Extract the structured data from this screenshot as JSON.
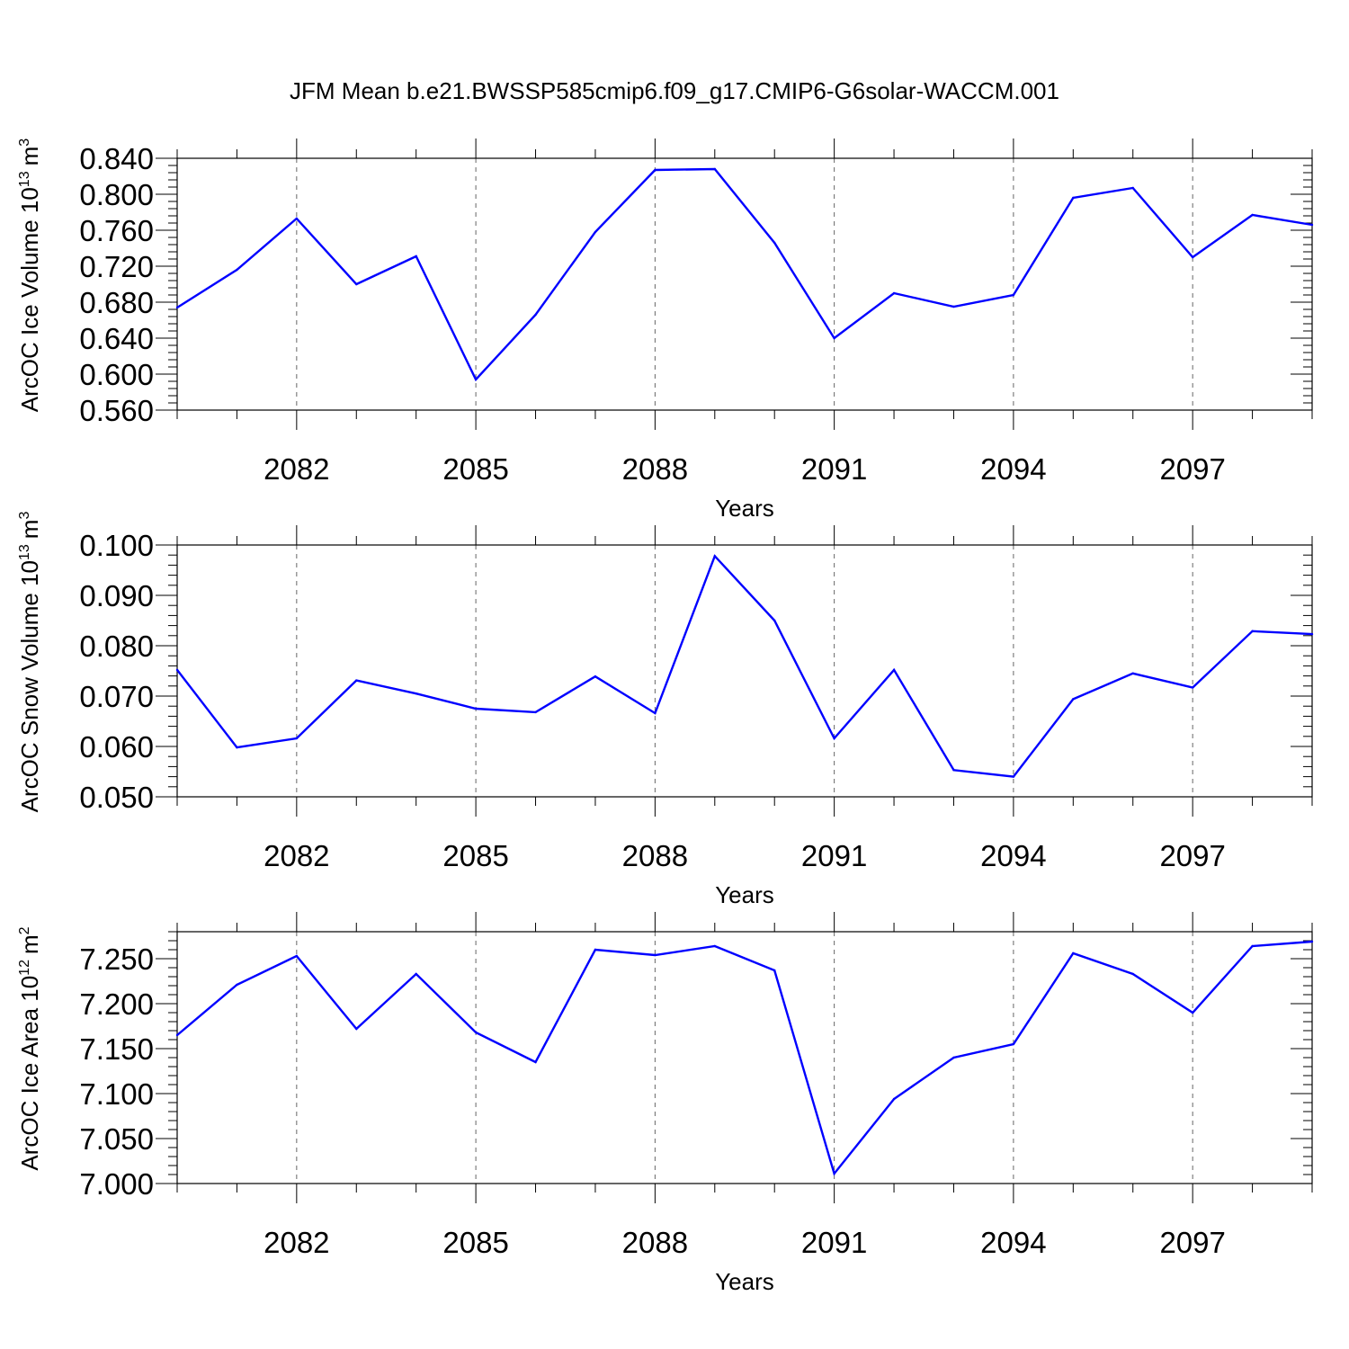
{
  "figure": {
    "title": "JFM Mean b.e21.BWSSP585cmip6.f09_g17.CMIP6-G6solar-WACCM.001",
    "line_color": "#0000ff"
  },
  "chart_data": [
    {
      "type": "line",
      "title": "",
      "xlabel": "Years",
      "ylabel": "ArcOC Ice Volume 10",
      "ylabel_exponent": "13",
      "ylabel_unit": "m",
      "ylabel_unit_exponent": "3",
      "xlim": [
        2080,
        2099
      ],
      "ylim": [
        0.56,
        0.84
      ],
      "x_ticks": [
        2082,
        2085,
        2088,
        2091,
        2094,
        2097
      ],
      "x_tick_labels": [
        "2082",
        "2085",
        "2088",
        "2091",
        "2094",
        "2097"
      ],
      "y_ticks": [
        0.56,
        0.6,
        0.64,
        0.68,
        0.72,
        0.76,
        0.8,
        0.84
      ],
      "y_tick_labels": [
        "0.560",
        "0.600",
        "0.640",
        "0.680",
        "0.720",
        "0.760",
        "0.800",
        "0.840"
      ],
      "grid": "vertical dashed at major x ticks",
      "x": [
        2080,
        2081,
        2082,
        2083,
        2084,
        2085,
        2086,
        2087,
        2088,
        2089,
        2090,
        2091,
        2092,
        2093,
        2094,
        2095,
        2096,
        2097,
        2098,
        2099
      ],
      "values": [
        0.674,
        0.716,
        0.773,
        0.7,
        0.731,
        0.594,
        0.666,
        0.758,
        0.827,
        0.828,
        0.746,
        0.64,
        0.69,
        0.675,
        0.688,
        0.796,
        0.807,
        0.73,
        0.777,
        0.766
      ]
    },
    {
      "type": "line",
      "title": "",
      "xlabel": "Years",
      "ylabel": "ArcOC Snow Volume 10",
      "ylabel_exponent": "13",
      "ylabel_unit": "m",
      "ylabel_unit_exponent": "3",
      "xlim": [
        2080,
        2099
      ],
      "ylim": [
        0.05,
        0.1
      ],
      "x_ticks": [
        2082,
        2085,
        2088,
        2091,
        2094,
        2097
      ],
      "x_tick_labels": [
        "2082",
        "2085",
        "2088",
        "2091",
        "2094",
        "2097"
      ],
      "y_ticks": [
        0.05,
        0.06,
        0.07,
        0.08,
        0.09,
        0.1
      ],
      "y_tick_labels": [
        "0.050",
        "0.060",
        "0.070",
        "0.080",
        "0.090",
        "0.100"
      ],
      "grid": "vertical dashed at major x ticks",
      "x": [
        2080,
        2081,
        2082,
        2083,
        2084,
        2085,
        2086,
        2087,
        2088,
        2089,
        2090,
        2091,
        2092,
        2093,
        2094,
        2095,
        2096,
        2097,
        2098,
        2099
      ],
      "values": [
        0.0752,
        0.0598,
        0.0616,
        0.0731,
        0.0705,
        0.0675,
        0.0668,
        0.0739,
        0.0666,
        0.0978,
        0.085,
        0.0616,
        0.0752,
        0.0553,
        0.054,
        0.0694,
        0.0745,
        0.0717,
        0.0829,
        0.0823
      ]
    },
    {
      "type": "line",
      "title": "",
      "xlabel": "Years",
      "ylabel": "ArcOC Ice Area 10",
      "ylabel_exponent": "12",
      "ylabel_unit": "m",
      "ylabel_unit_exponent": "2",
      "xlim": [
        2080,
        2099
      ],
      "ylim": [
        7.0,
        7.28
      ],
      "x_ticks": [
        2082,
        2085,
        2088,
        2091,
        2094,
        2097
      ],
      "x_tick_labels": [
        "2082",
        "2085",
        "2088",
        "2091",
        "2094",
        "2097"
      ],
      "y_ticks": [
        7.0,
        7.05,
        7.1,
        7.15,
        7.2,
        7.25
      ],
      "y_tick_labels": [
        "7.000",
        "7.050",
        "7.100",
        "7.150",
        "7.200",
        "7.250"
      ],
      "grid": "vertical dashed at major x ticks",
      "x": [
        2080,
        2081,
        2082,
        2083,
        2084,
        2085,
        2086,
        2087,
        2088,
        2089,
        2090,
        2091,
        2092,
        2093,
        2094,
        2095,
        2096,
        2097,
        2098,
        2099
      ],
      "values": [
        7.165,
        7.221,
        7.253,
        7.172,
        7.233,
        7.168,
        7.135,
        7.26,
        7.254,
        7.264,
        7.237,
        7.011,
        7.094,
        7.14,
        7.155,
        7.256,
        7.233,
        7.19,
        7.264,
        7.269
      ]
    }
  ]
}
